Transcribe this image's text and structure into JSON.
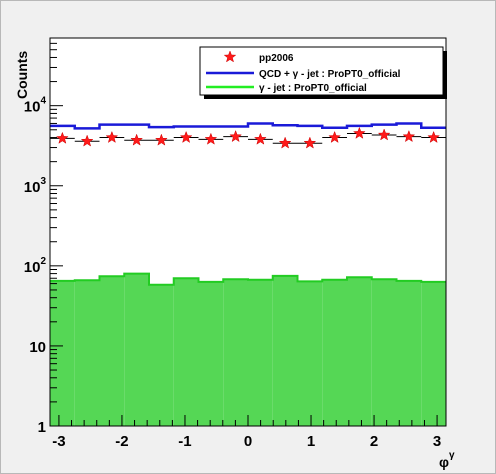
{
  "chart_data": {
    "type": "histogram",
    "x_edges": [
      -3.1416,
      -2.7489,
      -2.3562,
      -1.9635,
      -1.5708,
      -1.1781,
      -0.7854,
      -0.3927,
      0.0,
      0.3927,
      0.7854,
      1.1781,
      1.5708,
      1.9635,
      2.3562,
      2.7489,
      3.1416
    ],
    "xlim": [
      -3.1416,
      3.1416
    ],
    "ylim": [
      1,
      70000
    ],
    "yscale": "log",
    "xlabel": "φ",
    "xlabel_sup": "γ",
    "ylabel": "Counts",
    "x_ticks": [
      -3,
      -2,
      -1,
      0,
      1,
      2,
      3
    ],
    "x_tick_labels": [
      "-3",
      "-2",
      "-1",
      "0",
      "1",
      "2",
      "3"
    ],
    "y_ticks": [
      {
        "value": 1,
        "base": "1",
        "exp": ""
      },
      {
        "value": 10,
        "base": "10",
        "exp": ""
      },
      {
        "value": 100,
        "base": "10",
        "exp": "2"
      },
      {
        "value": 1000,
        "base": "10",
        "exp": "3"
      },
      {
        "value": 10000,
        "base": "10",
        "exp": "4"
      }
    ],
    "legend_position": "top-right",
    "series": [
      {
        "name": "QCD + γ - jet : ProPT0_official",
        "style": "step",
        "color": "#1a1ad8",
        "values": [
          5600,
          5200,
          5800,
          5800,
          5400,
          5500,
          5500,
          5500,
          6000,
          5700,
          5600,
          5300,
          5600,
          5800,
          6000,
          5300
        ]
      },
      {
        "name": "γ - jet : ProPT0_official",
        "style": "filled",
        "color": "#55d755",
        "line_color": "#22cc22",
        "values": [
          65,
          66,
          74,
          80,
          58,
          70,
          63,
          68,
          67,
          75,
          64,
          67,
          72,
          68,
          65,
          63
        ]
      },
      {
        "name": "pp2006",
        "style": "markers",
        "color": "#ff1a1a",
        "values": [
          3900,
          3600,
          4000,
          3700,
          3700,
          4000,
          3800,
          4100,
          3800,
          3400,
          3400,
          4000,
          4500,
          4300,
          4100,
          4000
        ],
        "errors": [
          110,
          110,
          110,
          110,
          110,
          110,
          110,
          110,
          110,
          110,
          110,
          110,
          110,
          110,
          110,
          110
        ]
      }
    ],
    "legend": [
      {
        "label": "pp2006",
        "kind": "marker",
        "color": "#ff1a1a"
      },
      {
        "label": "QCD + γ - jet : ProPT0_official",
        "kind": "line",
        "color": "#1a1ad8"
      },
      {
        "label": "γ - jet : ProPT0_official",
        "kind": "line",
        "color": "#22ee22"
      }
    ]
  }
}
